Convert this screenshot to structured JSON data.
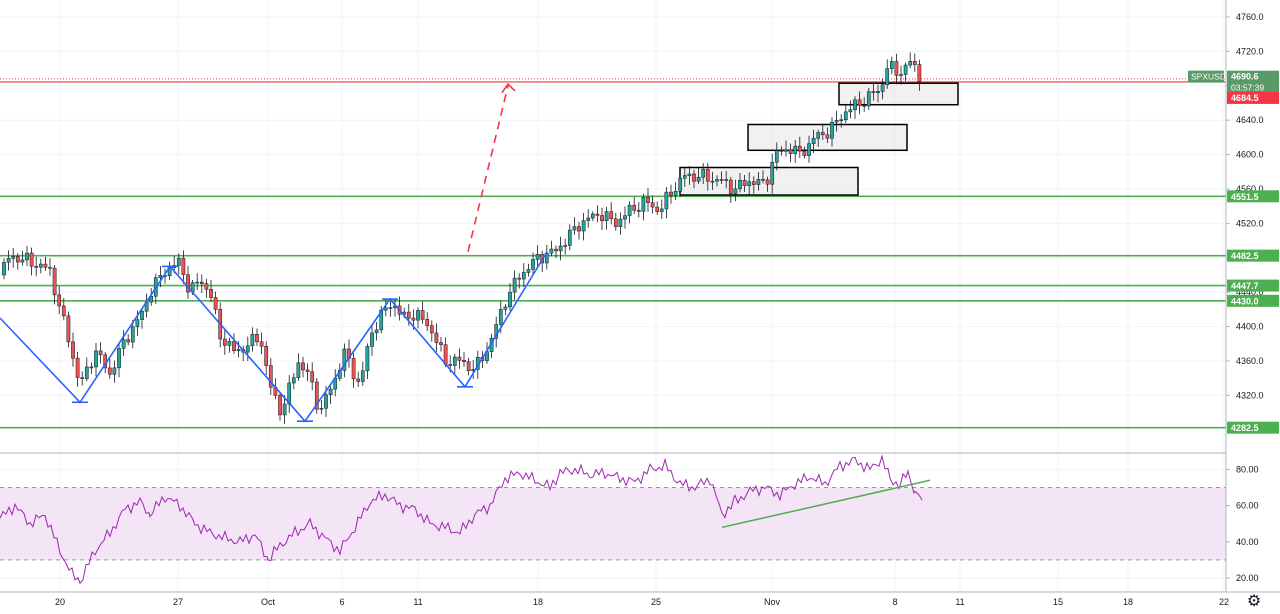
{
  "chart_data": [
    {
      "type": "candlestick",
      "symbol": "SPXUSD",
      "last_price": "4690.6",
      "countdown": "03:57:39",
      "prev_close": "4684.5",
      "y_ticks": [
        "4320.0",
        "4360.0",
        "4400.0",
        "4440.0",
        "4480.0",
        "4520.0",
        "4560.0",
        "4600.0",
        "4640.0",
        "4680.0",
        "4720.0",
        "4760.0"
      ],
      "ylim": [
        4260,
        4785
      ],
      "x_ticks": [
        "20",
        "27",
        "Oct",
        "6",
        "11",
        "18",
        "25",
        "Nov",
        "8",
        "11",
        "15",
        "18",
        "22"
      ],
      "horizontal_levels": [
        {
          "value": 4551.5,
          "label": "4551.5"
        },
        {
          "value": 4482.5,
          "label": "4482.5"
        },
        {
          "value": 4447.7,
          "label": "4447.7"
        },
        {
          "value": 4430.0,
          "label": "4430.0"
        },
        {
          "value": 4282.5,
          "label": "4282.5"
        }
      ],
      "close_path": [
        [
          0,
          4460
        ],
        [
          10,
          4482
        ],
        [
          30,
          4476
        ],
        [
          50,
          4465
        ],
        [
          60,
          4420
        ],
        [
          70,
          4380
        ],
        [
          80,
          4330
        ],
        [
          95,
          4372
        ],
        [
          110,
          4345
        ],
        [
          125,
          4385
        ],
        [
          140,
          4410
        ],
        [
          150,
          4440
        ],
        [
          165,
          4465
        ],
        [
          180,
          4475
        ],
        [
          190,
          4440
        ],
        [
          200,
          4455
        ],
        [
          210,
          4440
        ],
        [
          220,
          4390
        ],
        [
          235,
          4370
        ],
        [
          250,
          4380
        ],
        [
          260,
          4390
        ],
        [
          270,
          4330
        ],
        [
          282,
          4300
        ],
        [
          290,
          4330
        ],
        [
          298,
          4360
        ],
        [
          310,
          4340
        ],
        [
          320,
          4300
        ],
        [
          335,
          4340
        ],
        [
          345,
          4370
        ],
        [
          360,
          4330
        ],
        [
          370,
          4390
        ],
        [
          380,
          4410
        ],
        [
          392,
          4430
        ],
        [
          402,
          4410
        ],
        [
          415,
          4415
        ],
        [
          430,
          4400
        ],
        [
          445,
          4360
        ],
        [
          460,
          4360
        ],
        [
          475,
          4350
        ],
        [
          490,
          4380
        ],
        [
          505,
          4430
        ],
        [
          520,
          4460
        ],
        [
          540,
          4482
        ],
        [
          555,
          4487
        ],
        [
          565,
          4500
        ],
        [
          580,
          4520
        ],
        [
          600,
          4532
        ],
        [
          615,
          4520
        ],
        [
          630,
          4535
        ],
        [
          645,
          4545
        ],
        [
          660,
          4535
        ],
        [
          670,
          4555
        ],
        [
          685,
          4575
        ],
        [
          700,
          4575
        ],
        [
          720,
          4570
        ],
        [
          735,
          4560
        ],
        [
          750,
          4570
        ],
        [
          765,
          4565
        ],
        [
          775,
          4600
        ],
        [
          790,
          4608
        ],
        [
          800,
          4600
        ],
        [
          815,
          4620
        ],
        [
          830,
          4628
        ],
        [
          845,
          4650
        ],
        [
          860,
          4660
        ],
        [
          872,
          4670
        ],
        [
          880,
          4675
        ],
        [
          888,
          4705
        ],
        [
          895,
          4695
        ],
        [
          905,
          4700
        ],
        [
          912,
          4710
        ],
        [
          918,
          4692
        ],
        [
          922,
          4690
        ]
      ],
      "boxes": [
        {
          "from": 680,
          "to": 858,
          "high": 4585,
          "low": 4553
        },
        {
          "from": 748,
          "to": 907,
          "high": 4635,
          "low": 4605
        },
        {
          "from": 839,
          "to": 958,
          "high": 4683,
          "low": 4658
        }
      ],
      "trend_lines": [
        {
          "points": [
            [
              0,
              4410
            ],
            [
              80,
              4312
            ],
            [
              170,
              4470
            ],
            [
              305,
              4290
            ],
            [
              390,
              4432
            ],
            [
              465,
              4330
            ],
            [
              547,
              4487
            ]
          ]
        }
      ]
    },
    {
      "type": "line",
      "indicator": "RSI",
      "y_ticks": [
        "20.00",
        "40.00",
        "60.00",
        "80.00"
      ],
      "ylim": [
        15,
        88
      ],
      "band": [
        30,
        70
      ],
      "x": [
        0,
        15,
        30,
        45,
        60,
        72,
        80,
        95,
        110,
        125,
        140,
        150,
        165,
        180,
        195,
        210,
        225,
        240,
        255,
        268,
        280,
        295,
        310,
        325,
        340,
        355,
        370,
        385,
        400,
        415,
        430,
        445,
        460,
        475,
        490,
        505,
        520,
        535,
        550,
        560,
        575,
        590,
        605,
        620,
        635,
        650,
        665,
        680,
        695,
        710,
        722,
        735,
        750,
        765,
        780,
        795,
        810,
        825,
        840,
        855,
        870,
        882,
        890,
        900,
        908,
        915,
        922
      ],
      "values": [
        53,
        60,
        50,
        55,
        35,
        22,
        18,
        35,
        45,
        58,
        62,
        55,
        65,
        60,
        50,
        45,
        42,
        40,
        44,
        30,
        38,
        45,
        50,
        42,
        35,
        48,
        62,
        66,
        60,
        58,
        50,
        48,
        45,
        55,
        60,
        75,
        78,
        74,
        70,
        78,
        80,
        77,
        78,
        75,
        73,
        80,
        82,
        72,
        70,
        75,
        55,
        62,
        68,
        70,
        66,
        72,
        76,
        72,
        82,
        85,
        80,
        86,
        74,
        72,
        78,
        68,
        63
      ],
      "trend_line": [
        [
          722,
          48
        ],
        [
          930,
          74
        ]
      ]
    }
  ],
  "colors": {
    "green_line": "#4caf50",
    "red_line": "#f23645",
    "trend_blue": "#2962ff",
    "rsi_purple": "#9c27b0",
    "rsi_band": "#f3e5f5",
    "candle_up": "#26a69a",
    "candle_down": "#ef5350"
  },
  "icons": {
    "settings": "gear-icon"
  }
}
